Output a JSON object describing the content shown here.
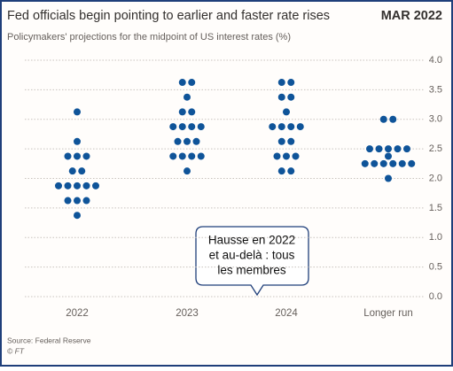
{
  "chart_data": {
    "type": "dotplot",
    "title": "Fed officials begin pointing to earlier and faster rate rises",
    "date_label": "MAR 2022",
    "subtitle": "Policymakers' projections for the midpoint of US interest rates (%)",
    "source": "Source: Federal Reserve",
    "credit": "© FT",
    "categories": [
      "2022",
      "2023",
      "2024",
      "Longer run"
    ],
    "color": "#0f5499",
    "values": [
      [
        3.125,
        2.625,
        2.375,
        2.375,
        2.375,
        2.125,
        2.125,
        1.875,
        1.875,
        1.875,
        1.875,
        1.875,
        1.625,
        1.625,
        1.625,
        1.375
      ],
      [
        3.625,
        3.625,
        3.375,
        3.125,
        3.125,
        2.875,
        2.875,
        2.875,
        2.875,
        2.625,
        2.625,
        2.625,
        2.375,
        2.375,
        2.375,
        2.375,
        2.125
      ],
      [
        3.625,
        3.625,
        3.375,
        3.375,
        3.125,
        2.875,
        2.875,
        2.875,
        2.875,
        2.625,
        2.625,
        2.375,
        2.375,
        2.375,
        2.125,
        2.125
      ],
      [
        3.0,
        3.0,
        2.5,
        2.5,
        2.5,
        2.5,
        2.5,
        2.375,
        2.25,
        2.25,
        2.25,
        2.25,
        2.25,
        2.25,
        2.0
      ]
    ],
    "ylim": [
      0,
      4
    ],
    "yticks": [
      {
        "value": 0,
        "label": "0.0"
      },
      {
        "value": 0.5,
        "label": "0.5"
      },
      {
        "value": 1,
        "label": "1.0"
      },
      {
        "value": 1.5,
        "label": "1.5"
      },
      {
        "value": 2,
        "label": "2.0"
      },
      {
        "value": 2.5,
        "label": "2.5"
      },
      {
        "value": 3,
        "label": "3.0"
      },
      {
        "value": 3.5,
        "label": "3.5"
      },
      {
        "value": 4,
        "label": "4.0"
      }
    ],
    "grid": true,
    "annotation": [
      "Hausse en 2022",
      "et au-delà : tous",
      "les membres"
    ]
  }
}
